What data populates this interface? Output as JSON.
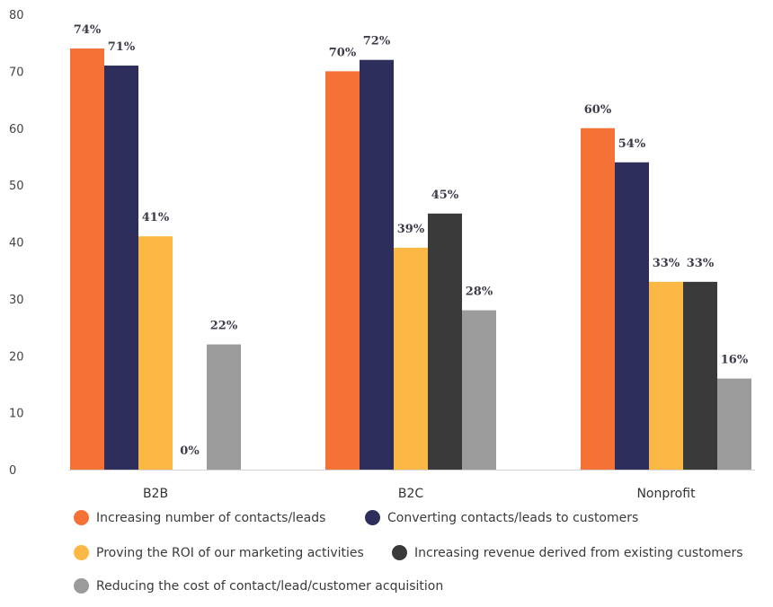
{
  "chart_data": {
    "type": "bar",
    "title": "",
    "xlabel": "",
    "ylabel": "",
    "ylim": [
      0,
      80
    ],
    "yticks": [
      0,
      10,
      20,
      30,
      40,
      50,
      60,
      70,
      80
    ],
    "grid": false,
    "legend_position": "bottom",
    "categories": [
      "B2B",
      "B2C",
      "Nonprofit"
    ],
    "series": [
      {
        "name": "Increasing number of contacts/leads",
        "color": "#f47236",
        "values": [
          74,
          70,
          60
        ],
        "labels": [
          "74%",
          "70%",
          "60%"
        ]
      },
      {
        "name": "Converting contacts/leads to customers",
        "color": "#2e2e5c",
        "values": [
          71,
          72,
          54
        ],
        "labels": [
          "71%",
          "72%",
          "54%"
        ]
      },
      {
        "name": "Proving the ROI of our marketing activities",
        "color": "#fbb844",
        "values": [
          41,
          39,
          33
        ],
        "labels": [
          "41%",
          "39%",
          "33%"
        ]
      },
      {
        "name": "Increasing revenue derived from existing customers",
        "color": "#3a3a3a",
        "values": [
          0,
          45,
          33
        ],
        "labels": [
          "0%",
          "45%",
          "33%"
        ]
      },
      {
        "name": "Reducing the cost of contact/lead/customer acquisition",
        "color": "#9b9b9b",
        "values": [
          22,
          28,
          16
        ],
        "labels": [
          "22%",
          "28%",
          "16%"
        ]
      }
    ]
  },
  "legend": {
    "items": [
      "Increasing number of contacts/leads",
      "Converting contacts/leads to customers",
      "Proving the ROI of our marketing activities",
      "Increasing revenue derived from existing customers",
      "Reducing the cost of contact/lead/customer acquisition"
    ]
  }
}
